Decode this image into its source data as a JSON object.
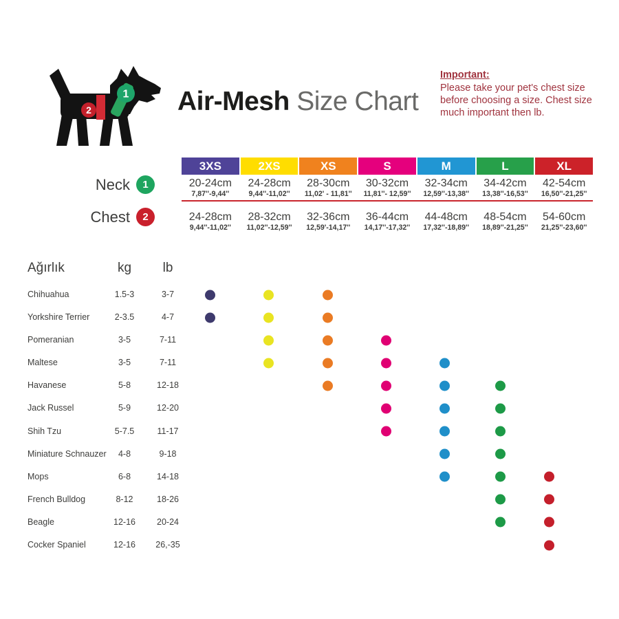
{
  "header": {
    "title_bold": "Air-Mesh",
    "title_light": "Size Chart",
    "important_heading": "Important:",
    "important_body": "Please take your pet's chest size before choosing a size. Chest size much important then lb.",
    "dog_neck_badge": "1",
    "dog_chest_badge": "2"
  },
  "size_chart": {
    "neck_label": "Neck",
    "neck_badge": "1",
    "chest_label": "Chest",
    "chest_badge": "2",
    "neck_badge_color": "#1ea55f",
    "chest_badge_color": "#c9202c",
    "sizes": [
      {
        "label": "3XS",
        "color": "#4f4398",
        "dot_color": "#3e3a6d",
        "neck_cm": "20-24cm",
        "neck_in": "7,87''-9,44''",
        "chest_cm": "24-28cm",
        "chest_in": "9,44''-11,02''"
      },
      {
        "label": "2XS",
        "color": "#ffdd00",
        "dot_color": "#e9e422",
        "neck_cm": "24-28cm",
        "neck_in": "9,44''-11,02''",
        "chest_cm": "28-32cm",
        "chest_in": "11,02''-12,59''"
      },
      {
        "label": "XS",
        "color": "#f0821e",
        "dot_color": "#ea7b24",
        "neck_cm": "28-30cm",
        "neck_in": "11,02' - 11,81''",
        "chest_cm": "32-36cm",
        "chest_in": "12,59'-14,17''"
      },
      {
        "label": "S",
        "color": "#e5007d",
        "dot_color": "#e00073",
        "neck_cm": "30-32cm",
        "neck_in": "11,81''- 12,59''",
        "chest_cm": "36-44cm",
        "chest_in": "14,17''-17,32''"
      },
      {
        "label": "M",
        "color": "#2196d3",
        "dot_color": "#1f8fc9",
        "neck_cm": "32-34cm",
        "neck_in": "12,59''-13,38''",
        "chest_cm": "44-48cm",
        "chest_in": "17,32''-18,89''"
      },
      {
        "label": "L",
        "color": "#27a04a",
        "dot_color": "#1d9a47",
        "neck_cm": "34-42cm",
        "neck_in": "13,38''-16,53''",
        "chest_cm": "48-54cm",
        "chest_in": "18,89''-21,25''"
      },
      {
        "label": "XL",
        "color": "#cc2229",
        "dot_color": "#c41f2b",
        "neck_cm": "42-54cm",
        "neck_in": "16,50''-21,25''",
        "chest_cm": "54-60cm",
        "chest_in": "21,25''-23,60''"
      }
    ]
  },
  "breed_table": {
    "weight_header": "Ağırlık",
    "kg_header": "kg",
    "lb_header": "lb",
    "rows": [
      {
        "breed": "Chihuahua",
        "kg": "1.5-3",
        "lb": "3-7",
        "fits": [
          "3XS",
          "2XS",
          "XS"
        ]
      },
      {
        "breed": "Yorkshire Terrier",
        "kg": "2-3.5",
        "lb": "4-7",
        "fits": [
          "3XS",
          "2XS",
          "XS"
        ]
      },
      {
        "breed": "Pomeranian",
        "kg": "3-5",
        "lb": "7-11",
        "fits": [
          "2XS",
          "XS",
          "S"
        ]
      },
      {
        "breed": "Maltese",
        "kg": "3-5",
        "lb": "7-11",
        "fits": [
          "2XS",
          "XS",
          "S",
          "M"
        ]
      },
      {
        "breed": "Havanese",
        "kg": "5-8",
        "lb": "12-18",
        "fits": [
          "XS",
          "S",
          "M",
          "L"
        ]
      },
      {
        "breed": "Jack Russel",
        "kg": "5-9",
        "lb": "12-20",
        "fits": [
          "S",
          "M",
          "L"
        ]
      },
      {
        "breed": "Shih Tzu",
        "kg": "5-7.5",
        "lb": "11-17",
        "fits": [
          "S",
          "M",
          "L"
        ]
      },
      {
        "breed": "Miniature Schnauzer",
        "kg": "4-8",
        "lb": "9-18",
        "fits": [
          "M",
          "L"
        ]
      },
      {
        "breed": "Mops",
        "kg": "6-8",
        "lb": "14-18",
        "fits": [
          "M",
          "L",
          "XL"
        ]
      },
      {
        "breed": "French Bulldog",
        "kg": "8-12",
        "lb": "18-26",
        "fits": [
          "L",
          "XL"
        ]
      },
      {
        "breed": "Beagle",
        "kg": "12-16",
        "lb": "20-24",
        "fits": [
          "L",
          "XL"
        ]
      },
      {
        "breed": "Cocker Spaniel",
        "kg": "12-16",
        "lb": "26,-35",
        "fits": [
          "XL"
        ]
      }
    ]
  },
  "chart_data": {
    "type": "table",
    "title": "Air-Mesh Size Chart",
    "columns": [
      "3XS",
      "2XS",
      "XS",
      "S",
      "M",
      "L",
      "XL"
    ],
    "neck_cm": [
      "20-24",
      "24-28",
      "28-30",
      "30-32",
      "32-34",
      "34-42",
      "42-54"
    ],
    "chest_cm": [
      "24-28",
      "28-32",
      "32-36",
      "36-44",
      "44-48",
      "48-54",
      "54-60"
    ],
    "fit_matrix": {
      "Chihuahua": [
        "3XS",
        "2XS",
        "XS"
      ],
      "Yorkshire Terrier": [
        "3XS",
        "2XS",
        "XS"
      ],
      "Pomeranian": [
        "2XS",
        "XS",
        "S"
      ],
      "Maltese": [
        "2XS",
        "XS",
        "S",
        "M"
      ],
      "Havanese": [
        "XS",
        "S",
        "M",
        "L"
      ],
      "Jack Russel": [
        "S",
        "M",
        "L"
      ],
      "Shih Tzu": [
        "S",
        "M",
        "L"
      ],
      "Miniature Schnauzer": [
        "M",
        "L"
      ],
      "Mops": [
        "M",
        "L",
        "XL"
      ],
      "French Bulldog": [
        "L",
        "XL"
      ],
      "Beagle": [
        "L",
        "XL"
      ],
      "Cocker Spaniel": [
        "XL"
      ]
    }
  }
}
